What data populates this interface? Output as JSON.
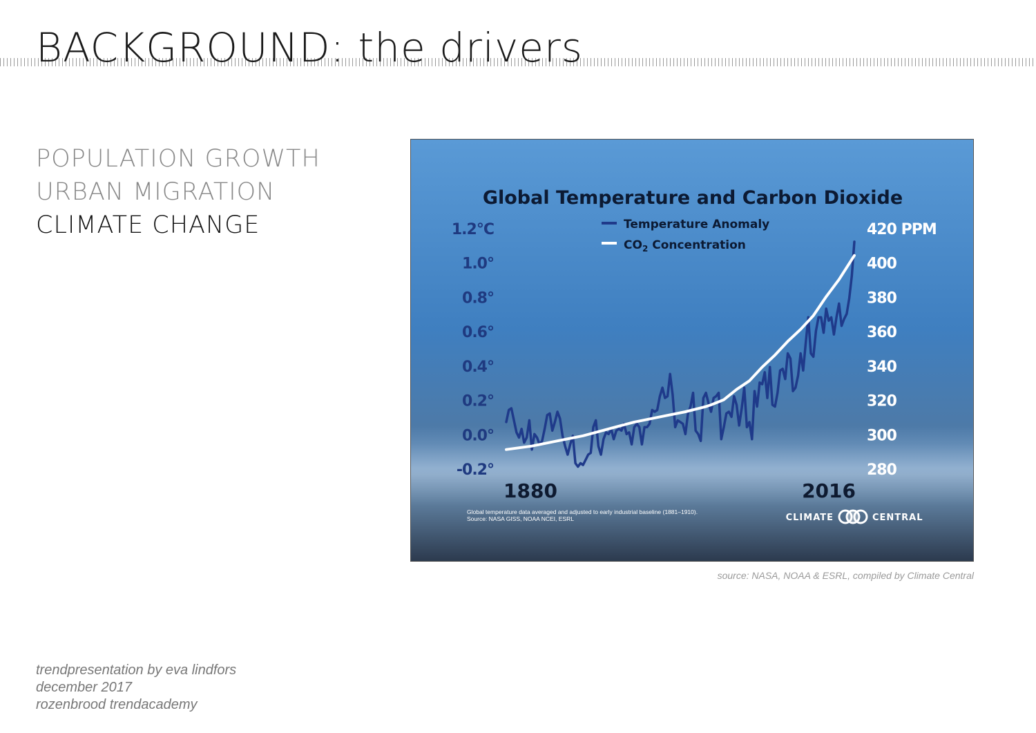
{
  "slide": {
    "title": "BACKGROUND: the drivers",
    "drivers": [
      {
        "label": "POPULATION GROWTH",
        "active": false
      },
      {
        "label": "URBAN MIGRATION",
        "active": false
      },
      {
        "label": "CLIMATE CHANGE",
        "active": true
      }
    ],
    "source": "source: NASA, NOAA & ESRL, compiled by Climate Central",
    "credits": [
      "trendpresentation by eva lindfors",
      "december 2017",
      "rozenbrood trendacademy"
    ]
  },
  "colors": {
    "temperature_line": "#1f3a8a",
    "co2_line": "#ffffff",
    "left_axis_text": "#1f3a80",
    "right_axis_text": "#ffffff",
    "title_text": "#0c1a33"
  },
  "chart_data": {
    "type": "line",
    "title": "Global Temperature and Carbon Dioxide",
    "x_start_label": "1880",
    "x_end_label": "2016",
    "xlim": [
      1880,
      2016
    ],
    "left_axis": {
      "ylim": [
        -0.2,
        1.2
      ],
      "ticks": [
        {
          "value": 1.2,
          "label": "1.2°C"
        },
        {
          "value": 1.0,
          "label": "1.0°"
        },
        {
          "value": 0.8,
          "label": "0.8°"
        },
        {
          "value": 0.6,
          "label": "0.6°"
        },
        {
          "value": 0.4,
          "label": "0.4°"
        },
        {
          "value": 0.2,
          "label": "0.2°"
        },
        {
          "value": 0.0,
          "label": "0.0°"
        },
        {
          "value": -0.2,
          "label": "-0.2°"
        }
      ]
    },
    "right_axis": {
      "ylim": [
        280,
        420
      ],
      "ticks": [
        {
          "value": 420,
          "label": "420 PPM"
        },
        {
          "value": 400,
          "label": "400"
        },
        {
          "value": 380,
          "label": "380"
        },
        {
          "value": 360,
          "label": "360"
        },
        {
          "value": 340,
          "label": "340"
        },
        {
          "value": 320,
          "label": "320"
        },
        {
          "value": 300,
          "label": "300"
        },
        {
          "value": 280,
          "label": "280"
        }
      ]
    },
    "series": [
      {
        "name": "Temperature Anomaly",
        "axis": "left",
        "x": [
          1880,
          1881,
          1882,
          1883,
          1884,
          1885,
          1886,
          1887,
          1888,
          1889,
          1890,
          1891,
          1892,
          1893,
          1894,
          1895,
          1896,
          1897,
          1898,
          1899,
          1900,
          1901,
          1902,
          1903,
          1904,
          1905,
          1906,
          1907,
          1908,
          1909,
          1910,
          1911,
          1912,
          1913,
          1914,
          1915,
          1916,
          1917,
          1918,
          1919,
          1920,
          1921,
          1922,
          1923,
          1924,
          1925,
          1926,
          1927,
          1928,
          1929,
          1930,
          1931,
          1932,
          1933,
          1934,
          1935,
          1936,
          1937,
          1938,
          1939,
          1940,
          1941,
          1942,
          1943,
          1944,
          1945,
          1946,
          1947,
          1948,
          1949,
          1950,
          1951,
          1952,
          1953,
          1954,
          1955,
          1956,
          1957,
          1958,
          1959,
          1960,
          1961,
          1962,
          1963,
          1964,
          1965,
          1966,
          1967,
          1968,
          1969,
          1970,
          1971,
          1972,
          1973,
          1974,
          1975,
          1976,
          1977,
          1978,
          1979,
          1980,
          1981,
          1982,
          1983,
          1984,
          1985,
          1986,
          1987,
          1988,
          1989,
          1990,
          1991,
          1992,
          1993,
          1994,
          1995,
          1996,
          1997,
          1998,
          1999,
          2000,
          2001,
          2002,
          2003,
          2004,
          2005,
          2006,
          2007,
          2008,
          2009,
          2010,
          2011,
          2012,
          2013,
          2014,
          2015,
          2016
        ],
        "values": [
          0.07,
          0.14,
          0.15,
          0.08,
          0.01,
          -0.02,
          0.03,
          -0.05,
          -0.02,
          0.08,
          -0.09,
          0.0,
          -0.02,
          -0.06,
          -0.04,
          0.03,
          0.11,
          0.12,
          0.02,
          0.07,
          0.13,
          0.09,
          -0.01,
          -0.07,
          -0.12,
          -0.06,
          -0.01,
          -0.17,
          -0.19,
          -0.17,
          -0.18,
          -0.15,
          -0.12,
          -0.11,
          0.04,
          0.08,
          -0.07,
          -0.12,
          -0.03,
          0.01,
          0.0,
          0.03,
          -0.03,
          0.02,
          0.03,
          0.02,
          0.06,
          0.0,
          0.01,
          -0.06,
          0.04,
          0.06,
          0.04,
          -0.06,
          0.04,
          0.04,
          0.06,
          0.14,
          0.13,
          0.14,
          0.22,
          0.27,
          0.21,
          0.22,
          0.35,
          0.23,
          0.04,
          0.08,
          0.07,
          0.06,
          0.0,
          0.12,
          0.16,
          0.24,
          0.02,
          0.0,
          -0.04,
          0.21,
          0.24,
          0.18,
          0.13,
          0.21,
          0.22,
          0.24,
          -0.03,
          0.04,
          0.12,
          0.13,
          0.1,
          0.22,
          0.17,
          0.05,
          0.15,
          0.27,
          0.04,
          0.07,
          -0.03,
          0.25,
          0.16,
          0.3,
          0.29,
          0.36,
          0.21,
          0.39,
          0.17,
          0.16,
          0.24,
          0.37,
          0.38,
          0.32,
          0.47,
          0.44,
          0.25,
          0.27,
          0.34,
          0.47,
          0.37,
          0.53,
          0.68,
          0.47,
          0.45,
          0.6,
          0.68,
          0.68,
          0.59,
          0.73,
          0.66,
          0.68,
          0.58,
          0.68,
          0.76,
          0.63,
          0.67,
          0.7,
          0.79,
          0.92,
          1.12
        ]
      },
      {
        "name": "CO₂ Concentration",
        "axis": "right",
        "x": [
          1880,
          1890,
          1900,
          1910,
          1920,
          1930,
          1940,
          1950,
          1958,
          1960,
          1965,
          1970,
          1975,
          1980,
          1985,
          1990,
          1995,
          2000,
          2005,
          2010,
          2016
        ],
        "values": [
          291,
          293,
          296,
          299,
          303,
          307,
          310,
          313,
          316,
          317,
          320,
          326,
          331,
          339,
          346,
          354,
          361,
          369,
          380,
          390,
          404
        ]
      }
    ],
    "legend": {
      "placement": "top-center",
      "items": [
        {
          "label": "Temperature Anomaly",
          "subscript": "",
          "after": ""
        },
        {
          "label": "CO",
          "subscript": "2",
          "after": " Concentration"
        }
      ]
    },
    "note_lines": [
      "Global temperature data averaged and adjusted to early industrial baseline (1881–1910).",
      "Source: NASA GISS, NOAA NCEI, ESRL"
    ],
    "brand": {
      "left": "CLIMATE",
      "right": "CENTRAL"
    },
    "grid": false
  }
}
